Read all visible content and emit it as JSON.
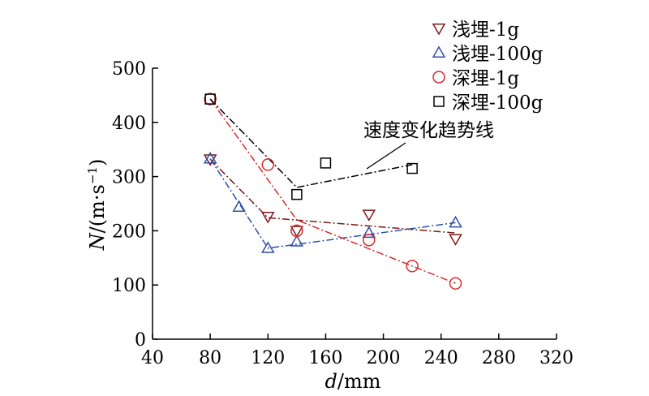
{
  "chart_data": {
    "type": "scatter",
    "xlabel_italic": "d",
    "xlabel_rest": "/mm",
    "ylabel_italic": "N",
    "ylabel_rest": "/(m·s",
    "ylabel_sup": "−1",
    "ylabel_close": ")",
    "xlim": [
      40,
      320
    ],
    "ylim": [
      0,
      500
    ],
    "xticks": [
      "40",
      "80",
      "120",
      "160",
      "200",
      "240",
      "280",
      "320"
    ],
    "yticks": [
      "0",
      "100",
      "200",
      "300",
      "400",
      "500"
    ],
    "annotation": "速度变化趋势线",
    "series": [
      {
        "name": "浅埋-1g",
        "marker": "triangle-down",
        "color": "#7a1b1b",
        "points": [
          [
            80,
            332
          ],
          [
            120,
            226
          ],
          [
            140,
            200
          ],
          [
            190,
            230
          ],
          [
            250,
            185
          ]
        ],
        "trend": [
          [
            80,
            332
          ],
          [
            120,
            224
          ],
          [
            250,
            196
          ]
        ]
      },
      {
        "name": "浅埋-100g",
        "marker": "triangle-up",
        "color": "#2f4fa8",
        "points": [
          [
            80,
            333
          ],
          [
            100,
            244
          ],
          [
            120,
            168
          ],
          [
            140,
            180
          ],
          [
            190,
            196
          ],
          [
            250,
            215
          ]
        ],
        "trend": [
          [
            80,
            333
          ],
          [
            120,
            168
          ],
          [
            140,
            175
          ],
          [
            250,
            215
          ]
        ]
      },
      {
        "name": "深埋-1g",
        "marker": "circle",
        "color": "#d82c2c",
        "points": [
          [
            80,
            443
          ],
          [
            120,
            322
          ],
          [
            140,
            200
          ],
          [
            190,
            183
          ],
          [
            220,
            135
          ],
          [
            250,
            103
          ]
        ],
        "trend": [
          [
            80,
            443
          ],
          [
            140,
            220
          ],
          [
            220,
            135
          ],
          [
            250,
            103
          ]
        ]
      },
      {
        "name": "深埋-100g",
        "marker": "square",
        "color": "#000000",
        "points": [
          [
            80,
            443
          ],
          [
            140,
            267
          ],
          [
            160,
            325
          ],
          [
            220,
            315
          ]
        ],
        "trend": [
          [
            80,
            443
          ],
          [
            140,
            280
          ],
          [
            220,
            322
          ]
        ]
      }
    ]
  }
}
